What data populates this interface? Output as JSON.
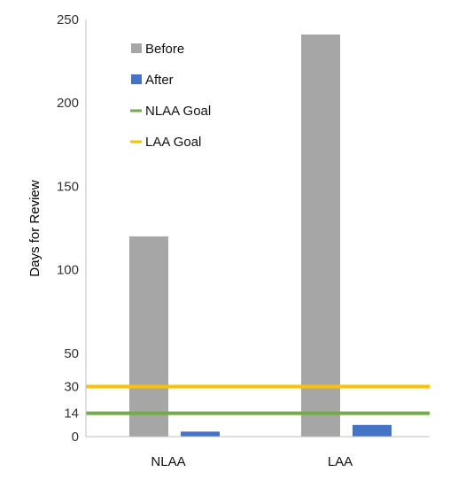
{
  "chart_data": {
    "type": "bar",
    "categories": [
      "NLAA",
      "LAA"
    ],
    "series": [
      {
        "name": "Before",
        "values": [
          120,
          241
        ],
        "color": "#a6a6a6"
      },
      {
        "name": "After",
        "values": [
          3,
          7
        ],
        "color": "#4472c4"
      }
    ],
    "reference_lines": [
      {
        "name": "NLAA Goal",
        "value": 14,
        "color": "#70ad47"
      },
      {
        "name": "LAA Goal",
        "value": 30,
        "color": "#ffc000"
      }
    ],
    "ylabel": "Days for Review",
    "xlabel": "",
    "title": "",
    "ylim": [
      0,
      250
    ],
    "yticks": [
      0,
      14,
      30,
      50,
      100,
      150,
      200,
      250
    ],
    "grid": false,
    "legend_position": "top-left"
  }
}
